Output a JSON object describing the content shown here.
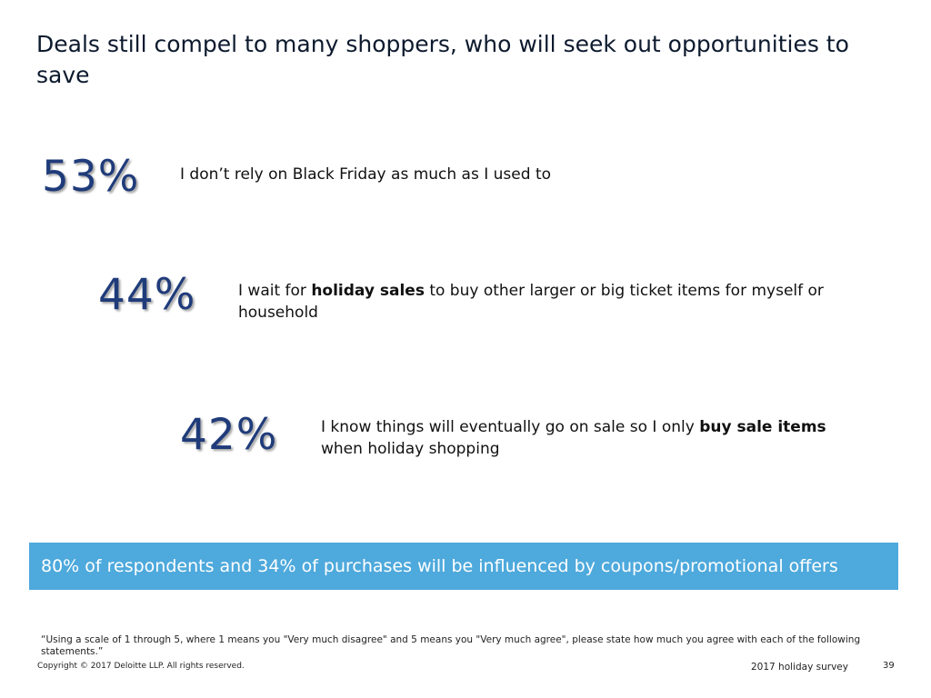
{
  "title": "Deals still compel to many shoppers, who will seek out opportunities to save",
  "stats": [
    {
      "percent": "53%",
      "text_parts": [
        {
          "text": "I don’t rely on Black Friday as much as I used to",
          "bold": false
        }
      ]
    },
    {
      "percent": "44%",
      "text_parts": [
        {
          "text": "I wait for ",
          "bold": false
        },
        {
          "text": "holiday sales",
          "bold": true
        },
        {
          "text": " to buy other larger or big ticket items for myself or household",
          "bold": false
        }
      ]
    },
    {
      "percent": "42%",
      "text_parts": [
        {
          "text": "I know things will eventually go on sale so I only ",
          "bold": false
        },
        {
          "text": "buy sale items",
          "bold": true
        },
        {
          "text": " when holiday shopping",
          "bold": false
        }
      ]
    }
  ],
  "banner": "80% of respondents and 34% of purchases will be influenced by coupons/promotional offers",
  "footnote": "“Using a scale of 1 through 5, where 1 means you \"Very much disagree\" and 5 means you \"Very much agree\", please state how much you agree with each of the following statements.”",
  "copyright": "Copyright © 2017 Deloitte LLP. All rights reserved.",
  "survey_label": "2017 holiday survey",
  "page_number": "39",
  "colors": {
    "percent": "#1f3b7a",
    "banner_bg": "#4ea9dc",
    "banner_text": "#ffffff"
  }
}
